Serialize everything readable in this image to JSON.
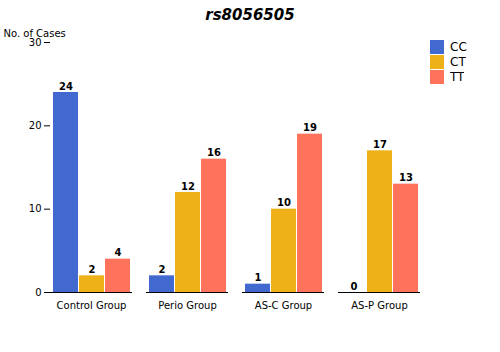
{
  "chart_data": {
    "type": "bar",
    "title": "rs8056505",
    "ylabel": "No. of Cases",
    "categories": [
      "Control Group",
      "Perio Group",
      "AS-C Group",
      "AS-P Group"
    ],
    "series": [
      {
        "name": "CC",
        "values": [
          24,
          2,
          1,
          0
        ]
      },
      {
        "name": "CT",
        "values": [
          2,
          12,
          10,
          17
        ]
      },
      {
        "name": "TT",
        "values": [
          4,
          16,
          19,
          13
        ]
      }
    ],
    "ylim": [
      0,
      30
    ],
    "yticks": [
      0,
      10,
      20,
      30
    ],
    "data_labels": true,
    "grid": false,
    "legend": "right"
  }
}
